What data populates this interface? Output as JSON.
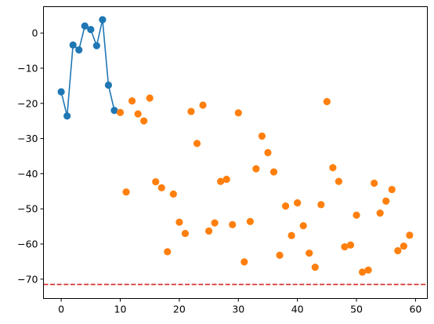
{
  "chart_data": {
    "type": "scatter",
    "title": "",
    "xlabel": "",
    "ylabel": "",
    "xlim": [
      -3,
      62
    ],
    "ylim": [
      -75.5,
      7.5
    ],
    "grid": false,
    "legend": "none",
    "x_ticks": [
      0,
      10,
      20,
      30,
      40,
      50,
      60
    ],
    "y_ticks": [
      0,
      -10,
      -20,
      -30,
      -40,
      -50,
      -60,
      -70
    ],
    "series": [
      {
        "style": "line-markers",
        "color": "#1f77b4",
        "x": [
          0,
          1,
          2,
          3,
          4,
          5,
          6,
          7,
          8,
          9
        ],
        "y": [
          -16.7,
          -23.6,
          -3.4,
          -4.8,
          2.0,
          1.0,
          -3.6,
          3.8,
          -14.8,
          -22.0
        ]
      },
      {
        "style": "markers",
        "color": "#ff7f0e",
        "x": [
          10,
          11,
          12,
          13,
          14,
          15,
          16,
          17,
          18,
          19,
          20,
          21,
          22,
          23,
          24,
          25,
          26,
          27,
          28,
          29,
          30,
          31,
          32,
          33,
          34,
          35,
          36,
          37,
          38,
          39,
          40,
          41,
          42,
          43,
          44,
          45,
          46,
          47,
          48,
          49,
          50,
          51,
          52,
          53,
          54,
          55,
          56,
          57,
          58,
          59
        ],
        "y": [
          -22.6,
          -45.2,
          -19.3,
          -23.0,
          -25.0,
          -18.5,
          -42.3,
          -44.0,
          -62.2,
          -45.8,
          -53.8,
          -57.0,
          -22.3,
          -31.4,
          -20.5,
          -56.3,
          -54.0,
          -42.2,
          -41.6,
          -54.5,
          -22.7,
          -65.1,
          -53.6,
          -38.6,
          -29.3,
          -34.0,
          -39.5,
          -63.2,
          -49.2,
          -57.6,
          -48.3,
          -54.8,
          -62.6,
          -66.6,
          -48.8,
          -19.5,
          -38.3,
          -42.2,
          -60.8,
          -60.3,
          -51.8,
          -68.0,
          -67.4,
          -42.7,
          -51.2,
          -47.8,
          -44.5,
          -61.9,
          -60.6,
          -57.5
        ]
      }
    ],
    "reference_line": {
      "orientation": "horizontal",
      "y": -71.5,
      "color": "#d62728",
      "dash": true
    }
  }
}
